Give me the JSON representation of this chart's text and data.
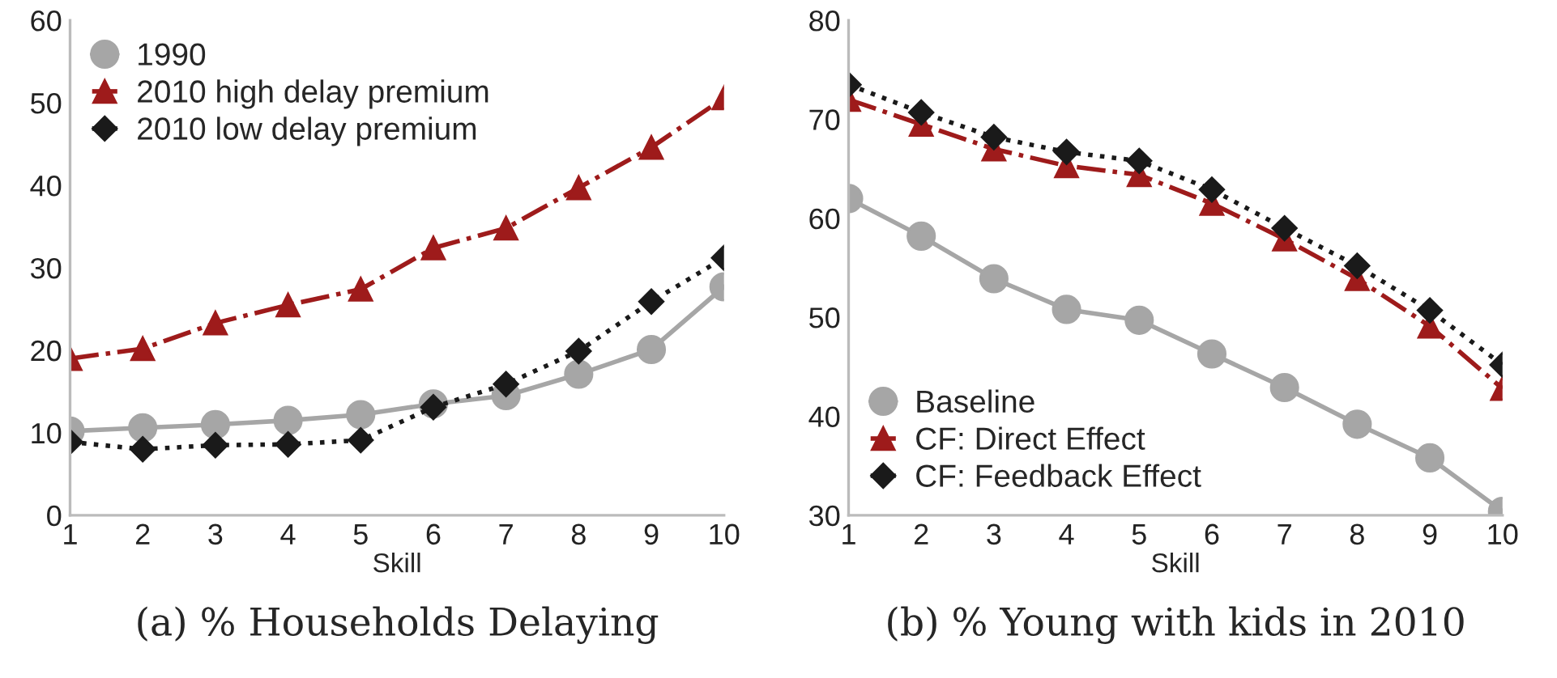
{
  "chart_data": [
    {
      "type": "line",
      "title": "(a) % Households Delaying",
      "xlabel": "Skill",
      "x": [
        1,
        2,
        3,
        4,
        5,
        6,
        7,
        8,
        9,
        10
      ],
      "xlim": [
        1,
        10
      ],
      "xticks": [
        1,
        2,
        3,
        4,
        5,
        6,
        7,
        8,
        9,
        10
      ],
      "ylim": [
        0,
        60
      ],
      "yticks": [
        0,
        10,
        20,
        30,
        40,
        50,
        60
      ],
      "grid": false,
      "legend": "top left",
      "series": [
        {
          "name": "1990",
          "color": "#a6a6a6",
          "marker": "circle",
          "line_style": "solid",
          "values": [
            10.2,
            10.6,
            11.0,
            11.5,
            12.2,
            13.5,
            14.5,
            17.1,
            20.1,
            27.7
          ]
        },
        {
          "name": "2010 high delay premium",
          "color": "#9e1b1b",
          "marker": "triangle",
          "line_style": "dashdot",
          "values": [
            19.0,
            20.2,
            23.3,
            25.5,
            27.4,
            32.4,
            34.8,
            39.7,
            44.6,
            50.6
          ]
        },
        {
          "name": "2010 low delay premium",
          "color": "#1a1a1a",
          "marker": "diamond",
          "line_style": "dotted",
          "values": [
            8.9,
            8.0,
            8.5,
            8.6,
            9.1,
            13.1,
            15.9,
            19.9,
            25.9,
            31.2
          ]
        }
      ]
    },
    {
      "type": "line",
      "title": "(b) % Young with kids in 2010",
      "xlabel": "Skill",
      "x": [
        1,
        2,
        3,
        4,
        5,
        6,
        7,
        8,
        9,
        10
      ],
      "xlim": [
        1,
        10
      ],
      "xticks": [
        1,
        2,
        3,
        4,
        5,
        6,
        7,
        8,
        9,
        10
      ],
      "ylim": [
        30,
        80
      ],
      "yticks": [
        30,
        40,
        50,
        60,
        70,
        80
      ],
      "grid": false,
      "legend": "bottom left",
      "series": [
        {
          "name": "Baseline",
          "color": "#a6a6a6",
          "marker": "circle",
          "line_style": "solid",
          "values": [
            62.0,
            58.2,
            53.9,
            50.8,
            49.7,
            46.3,
            42.9,
            39.2,
            35.8,
            30.4
          ]
        },
        {
          "name": "CF: Direct Effect",
          "color": "#9e1b1b",
          "marker": "triangle",
          "line_style": "dashdot",
          "values": [
            72.0,
            69.5,
            67.0,
            65.3,
            64.4,
            61.5,
            57.9,
            53.9,
            49.1,
            42.8
          ]
        },
        {
          "name": "CF: Feedback Effect",
          "color": "#1a1a1a",
          "marker": "diamond",
          "line_style": "dotted",
          "values": [
            73.5,
            70.7,
            68.2,
            66.7,
            65.8,
            62.9,
            59.0,
            55.2,
            50.7,
            45.2
          ]
        }
      ]
    }
  ]
}
